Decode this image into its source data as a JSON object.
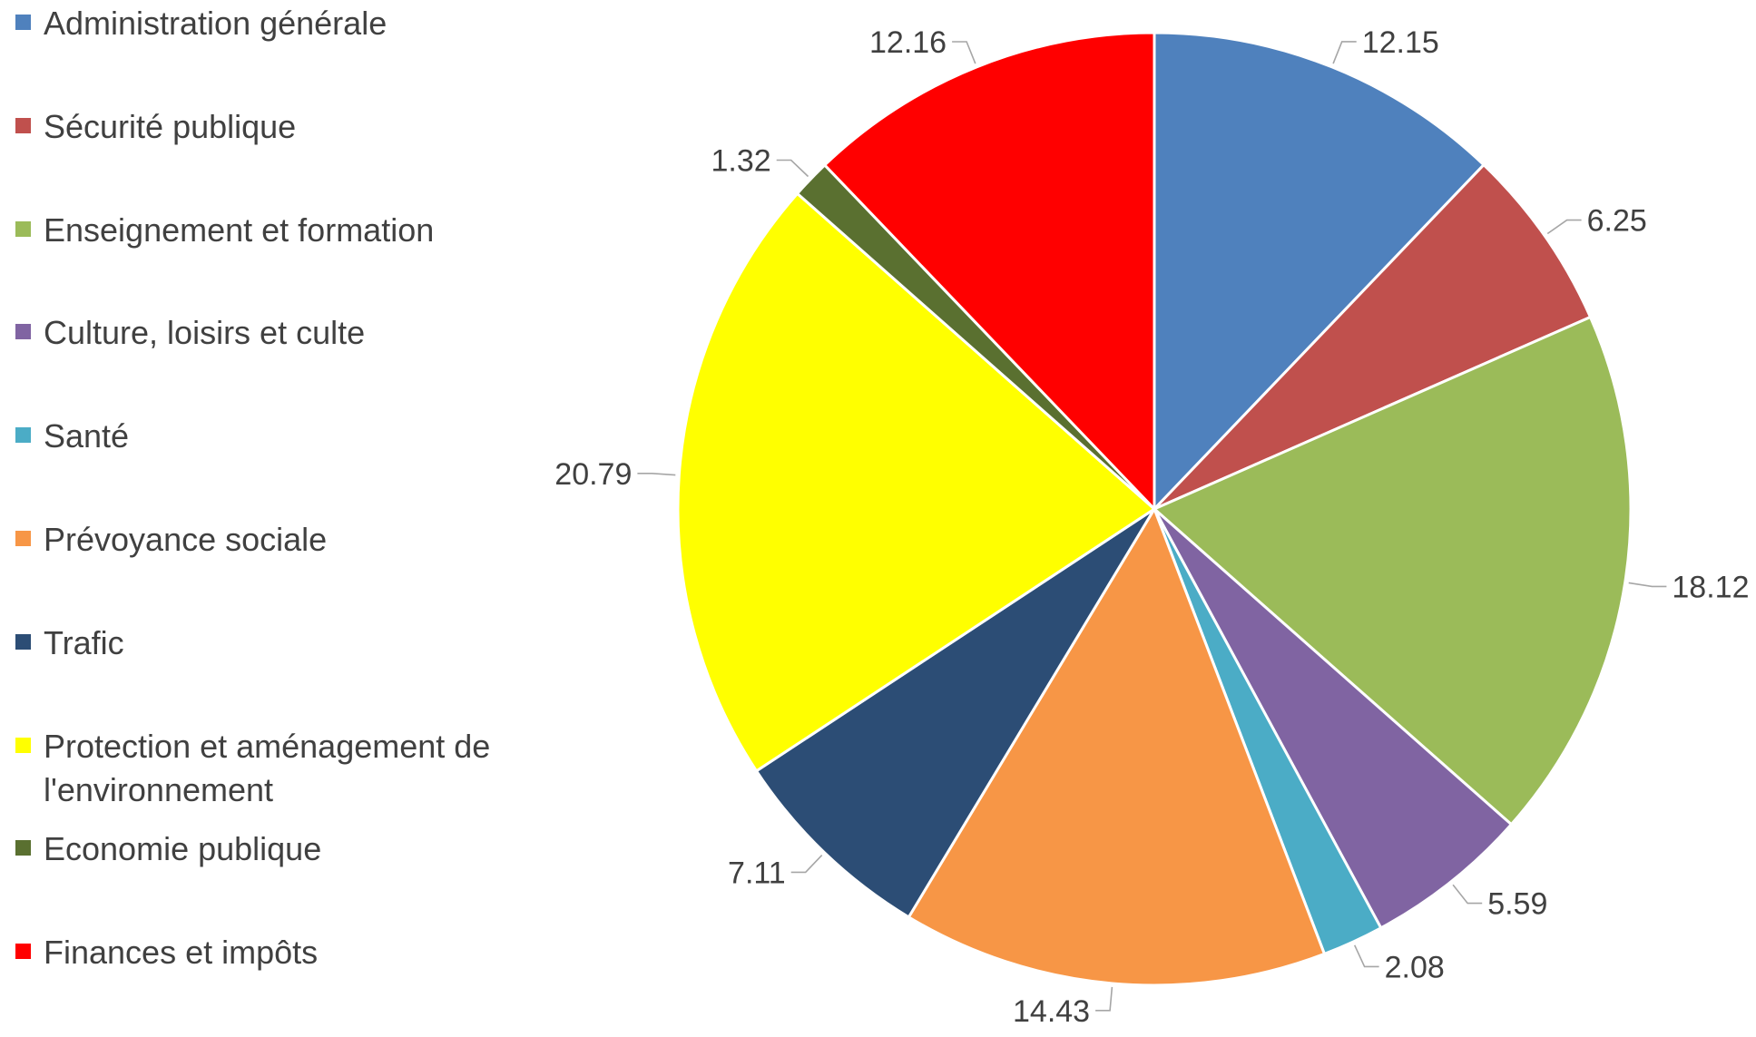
{
  "chart_data": {
    "type": "pie",
    "title": "",
    "categories": [
      "Administration générale",
      "Sécurité publique",
      "Enseignement et formation",
      "Culture, loisirs et culte",
      "Santé",
      "Prévoyance sociale",
      "Trafic",
      "Protection et aménagement de l'environnement",
      "Economie publique",
      "Finances et impôts"
    ],
    "values": [
      12.15,
      6.25,
      18.12,
      5.59,
      2.08,
      14.43,
      7.11,
      20.79,
      1.32,
      12.16
    ],
    "value_labels": [
      "12.15",
      "6.25",
      "18.12",
      "5.59",
      "2.08",
      "14.43",
      "7.11",
      "20.79",
      "1.32",
      "12.16"
    ],
    "colors": [
      "#4f81bd",
      "#c0504d",
      "#9bbb59",
      "#8064a2",
      "#4bacc6",
      "#f79646",
      "#2c4d75",
      "#ffff00",
      "#5a7030",
      "#ff0000"
    ],
    "legend": {
      "position": "left",
      "lines": [
        [
          "Administration générale"
        ],
        [
          "Sécurité publique"
        ],
        [
          "Enseignement et formation"
        ],
        [
          "Culture, loisirs et culte"
        ],
        [
          "Santé"
        ],
        [
          "Prévoyance sociale"
        ],
        [
          "Trafic"
        ],
        [
          "Protection et aménagement de",
          "l'environnement"
        ],
        [
          "Economie publique"
        ],
        [
          "Finances et impôts"
        ]
      ]
    },
    "start_angle_deg": 0,
    "direction": "clockwise",
    "data_labels": "outside-with-leader-lines"
  }
}
